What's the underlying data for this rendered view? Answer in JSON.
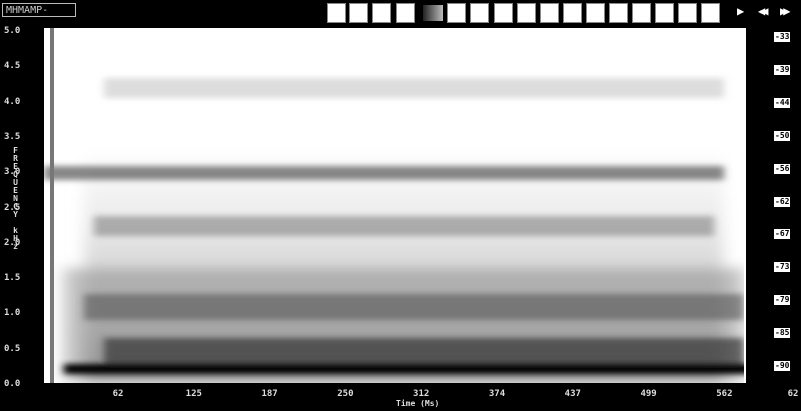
{
  "window": {
    "title": "MHMAMP-"
  },
  "y_axis": {
    "label": "FREQUENCY kHz",
    "ticks": [
      "5.0",
      "4.5",
      "4.0",
      "3.5",
      "3.0",
      "2.5",
      "2.0",
      "1.5",
      "1.0",
      "0.5",
      "0.0"
    ]
  },
  "x_axis": {
    "label": "Time (Ms)",
    "ticks": [
      "62",
      "125",
      "187",
      "250",
      "312",
      "374",
      "437",
      "499",
      "562",
      "62"
    ]
  },
  "level_scale": {
    "ticks": [
      "-33",
      "-39",
      "-44",
      "-50",
      "-56",
      "-62",
      "-67",
      "-73",
      "-79",
      "-85",
      "-90"
    ]
  }
}
